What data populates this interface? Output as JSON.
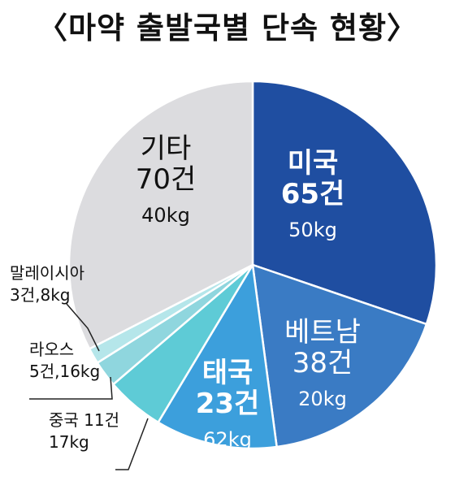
{
  "title": "〈마약 출발국별 단속 현황〉",
  "colors": {
    "usa": "#1f4ea1",
    "vietnam": "#3a7bc4",
    "thailand": "#3c9fdc",
    "china": "#5ecbd6",
    "laos": "#8fd6de",
    "malaysia": "#b5e6ea",
    "other": "#dcdcdf",
    "text_dark": "#111111",
    "text_light": "#ffffff"
  },
  "chart_data": {
    "type": "pie",
    "title": "〈마약 출발국별 단속 현황〉",
    "unit_cases": "건",
    "unit_weight": "kg",
    "slices": [
      {
        "key": "usa",
        "name": "미국",
        "cases": 65,
        "weight_kg": 50,
        "cases_text": "65건",
        "weight_text": "50kg"
      },
      {
        "key": "vietnam",
        "name": "베트남",
        "cases": 38,
        "weight_kg": 20,
        "cases_text": "38건",
        "weight_text": "20kg"
      },
      {
        "key": "thailand",
        "name": "태국",
        "cases": 23,
        "weight_kg": 62,
        "cases_text": "23건",
        "weight_text": "62kg"
      },
      {
        "key": "china",
        "name": "중국",
        "cases": 11,
        "weight_kg": 17,
        "label_line1": "중국 11건",
        "label_line2": "17kg"
      },
      {
        "key": "laos",
        "name": "라오스",
        "cases": 5,
        "weight_kg": 16,
        "label_line1": "라오스",
        "label_line2": "5건,16kg"
      },
      {
        "key": "malaysia",
        "name": "말레이시아",
        "cases": 3,
        "weight_kg": 8,
        "label_line1": "말레이시아",
        "label_line2": "3건,8kg"
      },
      {
        "key": "other",
        "name": "기타",
        "cases": 70,
        "weight_kg": 40,
        "cases_text": "70건",
        "weight_text": "40kg"
      }
    ]
  }
}
